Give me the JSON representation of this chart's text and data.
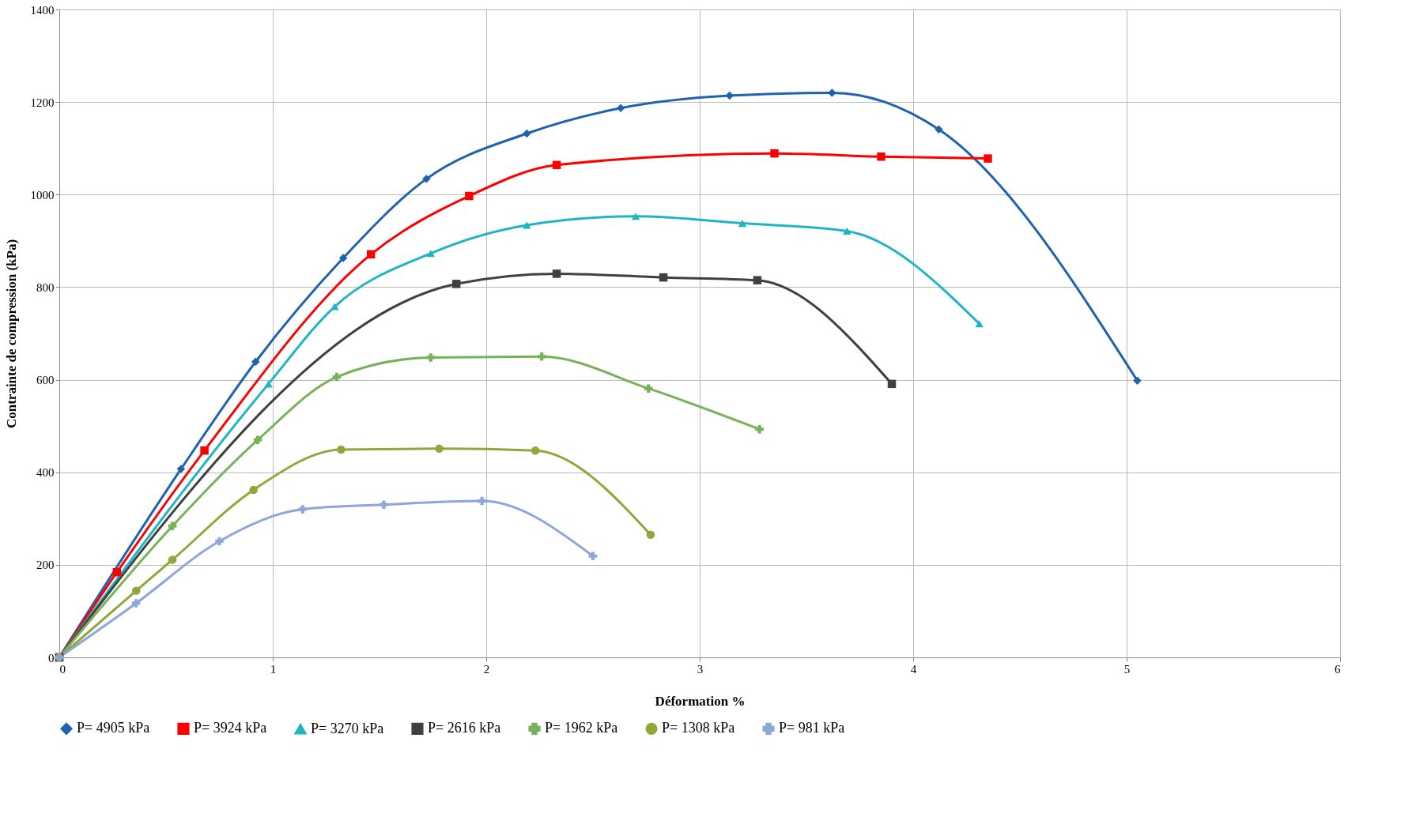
{
  "chart_data": {
    "type": "line",
    "xlabel": "Déformation %",
    "ylabel": "Contrainte de compression (kPa)",
    "xlim": [
      0,
      6
    ],
    "xticks": [
      0,
      1,
      2,
      3,
      4,
      5,
      6
    ],
    "ylim": [
      0,
      1400
    ],
    "yticks": [
      0,
      200,
      400,
      600,
      800,
      1000,
      1200,
      1400
    ],
    "grid": true,
    "legend": "bottom",
    "line_style": "solid",
    "series": [
      {
        "name": "P= 4905 kPa",
        "color": "#1f63b0",
        "marker": "diamond",
        "x": [
          0,
          0.57,
          0.92,
          1.33,
          1.72,
          2.19,
          2.63,
          3.14,
          3.62,
          4.12,
          5.05
        ],
        "values": [
          0,
          407,
          639,
          863,
          1034,
          1132,
          1187,
          1214,
          1220,
          1141,
          598
        ]
      },
      {
        "name": "P= 3924 kPa",
        "color": "#ff0000",
        "marker": "square",
        "x": [
          0,
          0.27,
          0.68,
          1.46,
          1.92,
          2.33,
          3.35,
          3.85,
          4.35
        ],
        "values": [
          0,
          184,
          447,
          871,
          997,
          1064,
          1089,
          1082,
          1078
        ]
      },
      {
        "name": "P= 3270 kPa",
        "color": "#1fb5c4",
        "marker": "triangle",
        "x": [
          0,
          0.98,
          1.29,
          1.74,
          2.19,
          2.7,
          3.2,
          3.69,
          4.31
        ],
        "values": [
          0,
          591,
          758,
          873,
          934,
          953,
          938,
          921,
          721
        ]
      },
      {
        "name": "P= 2616 kPa",
        "color": "#404040",
        "marker": "square",
        "x": [
          0,
          1.86,
          2.33,
          2.83,
          3.27,
          3.9
        ],
        "values": [
          0,
          807,
          829,
          821,
          815,
          591
        ]
      },
      {
        "name": "P= 1962 kPa",
        "color": "#77b15a",
        "marker": "cross",
        "x": [
          0,
          0.53,
          0.93,
          1.3,
          1.74,
          2.26,
          2.76,
          3.28
        ],
        "values": [
          0,
          284,
          470,
          606,
          648,
          650,
          581,
          493
        ]
      },
      {
        "name": "P= 1308 kPa",
        "color": "#8ea83a",
        "marker": "circle",
        "x": [
          0,
          0.36,
          0.53,
          0.91,
          1.32,
          1.78,
          2.23,
          2.77
        ],
        "values": [
          0,
          144,
          211,
          362,
          449,
          451,
          447,
          265
        ]
      },
      {
        "name": "P= 981 kPa",
        "color": "#8ea6dc",
        "marker": "cross",
        "x": [
          0,
          0.36,
          0.75,
          1.14,
          1.52,
          1.98,
          2.5
        ],
        "values": [
          0,
          117,
          251,
          320,
          330,
          338,
          219
        ]
      }
    ]
  }
}
